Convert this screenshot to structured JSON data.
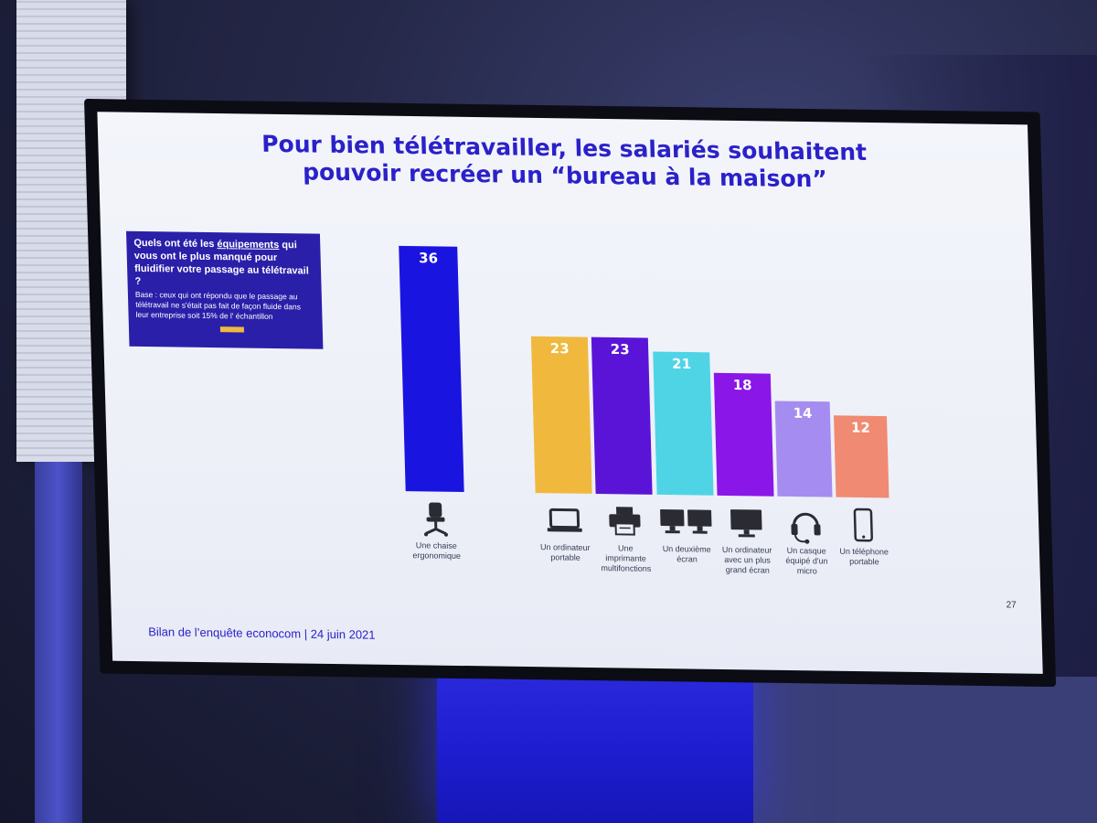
{
  "slide": {
    "title_line1": "Pour bien télétravailler, les salariés souhaitent",
    "title_line2": "pouvoir recréer un “bureau à la maison”",
    "question_pre": "Quels ont été les ",
    "question_underlined": "équipements",
    "question_post": " qui vous ont le plus manqué pour fluidifier votre passage au télétravail ?",
    "base_text": "Base : ceux qui ont répondu que le passage au télétravail ne s'était pas fait de façon fluide dans leur entreprise soit 15% de l' échantillon",
    "footer": "Bilan de l’enquête econocom | 24 juin 2021",
    "page_number": "27"
  },
  "chart_data": {
    "type": "bar",
    "title": "",
    "xlabel": "",
    "ylabel": "",
    "ylim": [
      0,
      36
    ],
    "grid": false,
    "categories": [
      "Une chaise ergonomique",
      "Un ordinateur portable",
      "Une imprimante multifonctions",
      "Un deuxième écran",
      "Un ordinateur avec un plus grand écran",
      "Un casque équipé d'un micro",
      "Un téléphone portable"
    ],
    "values": [
      36,
      23,
      23,
      21,
      18,
      14,
      12
    ],
    "colors": [
      "#1a14e0",
      "#f0b93e",
      "#5a14d8",
      "#4fd4e6",
      "#8a16e8",
      "#a58cf0",
      "#f08a72"
    ],
    "icons": [
      "office-chair-icon",
      "laptop-icon",
      "printer-icon",
      "dual-monitor-icon",
      "desktop-monitor-icon",
      "headset-icon",
      "smartphone-icon"
    ]
  }
}
